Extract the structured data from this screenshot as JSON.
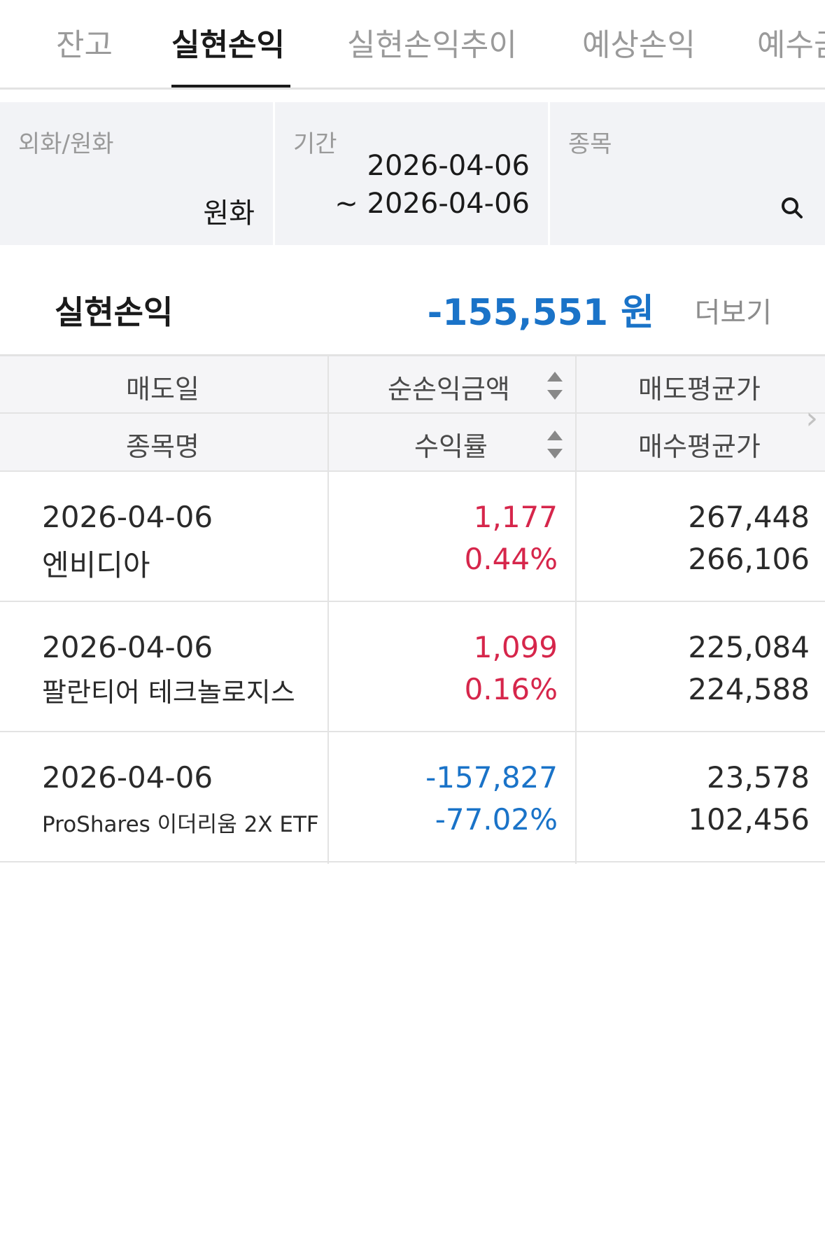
{
  "tabs": [
    {
      "label": "잔고",
      "active": false
    },
    {
      "label": "실현손익",
      "active": true
    },
    {
      "label": "실현손익추이",
      "active": false
    },
    {
      "label": "예상손익",
      "active": false
    },
    {
      "label": "예수금",
      "active": false
    }
  ],
  "filters": {
    "currency": {
      "label": "외화/원화",
      "value": "원화"
    },
    "period": {
      "label": "기간",
      "from": "2026-04-06",
      "to": "~ 2026-04-06"
    },
    "stock": {
      "label": "종목"
    }
  },
  "summary": {
    "title": "실현손익",
    "amount": "-155,551 원",
    "more_label": "더보기"
  },
  "table": {
    "headers": {
      "col1_top": "매도일",
      "col1_bottom": "종목명",
      "col2_top": "순손익금액",
      "col2_bottom": "수익률",
      "col3_top": "매도평균가",
      "col3_bottom": "매수평균가"
    },
    "rows": [
      {
        "date": "2026-04-06",
        "name": "엔비디아",
        "profit": "1,177",
        "rate": "0.44%",
        "sell_avg": "267,448",
        "buy_avg": "266,106",
        "sign": "pos"
      },
      {
        "date": "2026-04-06",
        "name": "팔란티어 테크놀로지스",
        "profit": "1,099",
        "rate": "0.16%",
        "sell_avg": "225,084",
        "buy_avg": "224,588",
        "sign": "pos"
      },
      {
        "date": "2026-04-06",
        "name": "ProShares 이더리움 2X ETF",
        "profit": "-157,827",
        "rate": "-77.02%",
        "sell_avg": "23,578",
        "buy_avg": "102,456",
        "sign": "neg"
      }
    ]
  },
  "colors": {
    "positive": "#d6264b",
    "negative": "#1a73c8"
  },
  "icons": {
    "search": "search-icon",
    "sort": "sort-icon",
    "next": "chevron-right-icon"
  }
}
